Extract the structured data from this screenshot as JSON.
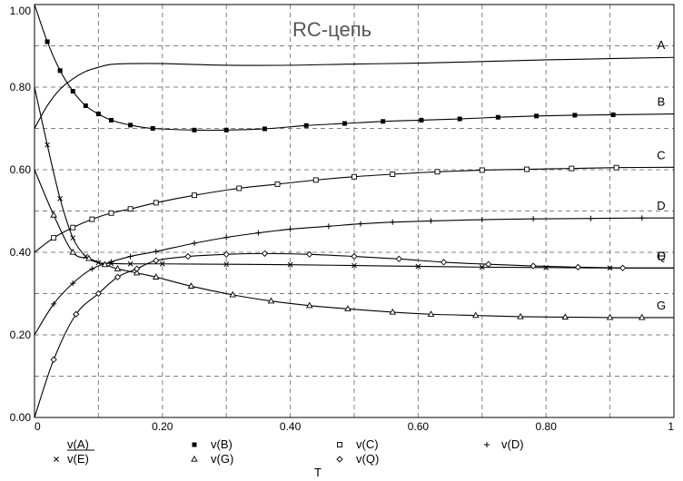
{
  "chart_data": {
    "type": "line",
    "title": "RC-цепь",
    "xlabel": "T",
    "ylabel": "",
    "xlim": [
      0,
      1
    ],
    "ylim": [
      0,
      1
    ],
    "grid": true,
    "x_ticks": [
      "0",
      "0.20",
      "0.40",
      "0.60",
      "0.80",
      "1"
    ],
    "y_ticks": [
      "0.00",
      "0.20",
      "0.40",
      "0.60",
      "0.80",
      "1.00"
    ],
    "series": [
      {
        "name": "v(A)",
        "label": "A",
        "marker": "none",
        "x": [
          0,
          0.02,
          0.04,
          0.06,
          0.08,
          0.1,
          0.12,
          0.15,
          0.2,
          0.3,
          0.4,
          0.5,
          0.6,
          0.7,
          0.8,
          0.9,
          1.0
        ],
        "y": [
          0.7,
          0.755,
          0.795,
          0.82,
          0.838,
          0.848,
          0.855,
          0.857,
          0.857,
          0.853,
          0.853,
          0.856,
          0.858,
          0.862,
          0.866,
          0.869,
          0.872
        ]
      },
      {
        "name": "v(B)",
        "label": "B",
        "marker": "square-filled",
        "x": [
          0,
          0.02,
          0.04,
          0.06,
          0.08,
          0.1,
          0.12,
          0.15,
          0.185,
          0.25,
          0.3,
          0.36,
          0.425,
          0.485,
          0.545,
          0.605,
          0.665,
          0.725,
          0.785,
          0.845,
          0.905,
          1.0
        ],
        "y": [
          1.0,
          0.91,
          0.84,
          0.79,
          0.755,
          0.735,
          0.72,
          0.708,
          0.7,
          0.696,
          0.696,
          0.699,
          0.707,
          0.712,
          0.717,
          0.72,
          0.723,
          0.727,
          0.73,
          0.732,
          0.733,
          0.735
        ]
      },
      {
        "name": "v(C)",
        "label": "C",
        "marker": "square-open",
        "x": [
          0,
          0.03,
          0.06,
          0.09,
          0.12,
          0.15,
          0.19,
          0.25,
          0.32,
          0.38,
          0.44,
          0.5,
          0.56,
          0.63,
          0.7,
          0.77,
          0.84,
          0.91,
          1.0
        ],
        "y": [
          0.4,
          0.435,
          0.46,
          0.48,
          0.495,
          0.505,
          0.52,
          0.538,
          0.555,
          0.565,
          0.575,
          0.583,
          0.589,
          0.595,
          0.599,
          0.601,
          0.603,
          0.605,
          0.606
        ]
      },
      {
        "name": "v(D)",
        "label": "D",
        "marker": "plus",
        "x": [
          0,
          0.03,
          0.06,
          0.09,
          0.12,
          0.15,
          0.19,
          0.25,
          0.3,
          0.35,
          0.4,
          0.46,
          0.51,
          0.56,
          0.62,
          0.7,
          0.78,
          0.87,
          0.95,
          1.0
        ],
        "y": [
          0.2,
          0.275,
          0.325,
          0.36,
          0.377,
          0.39,
          0.402,
          0.422,
          0.436,
          0.447,
          0.456,
          0.463,
          0.469,
          0.473,
          0.476,
          0.479,
          0.481,
          0.482,
          0.483,
          0.483
        ]
      },
      {
        "name": "v(E)",
        "label": "E",
        "marker": "x",
        "x": [
          0,
          0.02,
          0.04,
          0.06,
          0.08,
          0.1,
          0.12,
          0.15,
          0.2,
          0.3,
          0.4,
          0.5,
          0.6,
          0.7,
          0.8,
          0.9,
          1.0
        ],
        "y": [
          0.8,
          0.66,
          0.53,
          0.435,
          0.39,
          0.375,
          0.373,
          0.372,
          0.372,
          0.371,
          0.37,
          0.368,
          0.366,
          0.364,
          0.363,
          0.362,
          0.362
        ]
      },
      {
        "name": "v(G)",
        "label": "G",
        "marker": "triangle",
        "x": [
          0,
          0.03,
          0.06,
          0.085,
          0.11,
          0.13,
          0.16,
          0.19,
          0.245,
          0.31,
          0.37,
          0.43,
          0.49,
          0.56,
          0.62,
          0.69,
          0.76,
          0.83,
          0.9,
          0.95,
          1.0
        ],
        "y": [
          0.6,
          0.49,
          0.4,
          0.385,
          0.37,
          0.36,
          0.35,
          0.34,
          0.318,
          0.297,
          0.282,
          0.271,
          0.263,
          0.255,
          0.25,
          0.247,
          0.244,
          0.243,
          0.242,
          0.242,
          0.242
        ]
      },
      {
        "name": "v(Q)",
        "label": "Q",
        "marker": "diamond",
        "x": [
          0,
          0.03,
          0.065,
          0.1,
          0.13,
          0.16,
          0.19,
          0.24,
          0.3,
          0.36,
          0.43,
          0.5,
          0.57,
          0.64,
          0.71,
          0.78,
          0.85,
          0.92,
          1.0
        ],
        "y": [
          0.0,
          0.14,
          0.25,
          0.3,
          0.34,
          0.36,
          0.38,
          0.39,
          0.395,
          0.397,
          0.395,
          0.39,
          0.384,
          0.376,
          0.371,
          0.367,
          0.364,
          0.362,
          0.362
        ]
      }
    ]
  },
  "legend": [
    {
      "text": "v(A)",
      "marker": "none"
    },
    {
      "text": "v(B)",
      "marker": "square-filled"
    },
    {
      "text": "v(C)",
      "marker": "square-open"
    },
    {
      "text": "v(D)",
      "marker": "plus"
    },
    {
      "text": "v(E)",
      "marker": "x"
    },
    {
      "text": "v(G)",
      "marker": "triangle"
    },
    {
      "text": "v(Q)",
      "marker": "diamond"
    }
  ]
}
